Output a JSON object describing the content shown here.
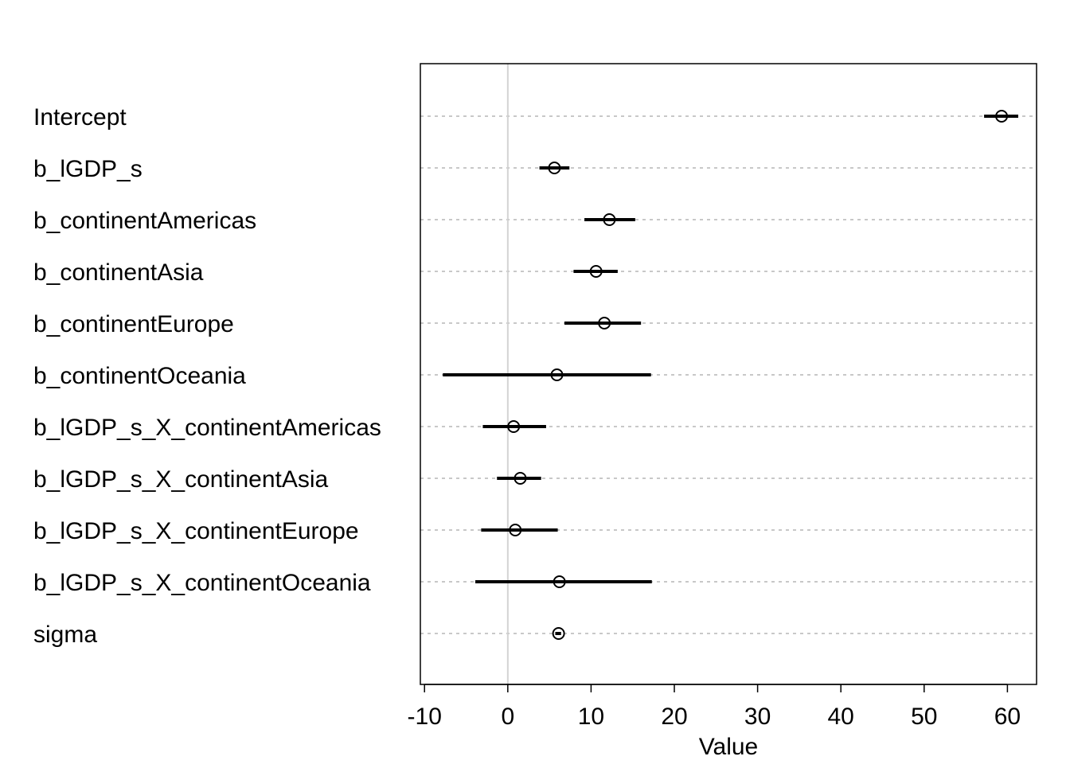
{
  "chart_data": {
    "type": "dotplot",
    "xlabel": "Value",
    "xlim": [
      -10.5,
      63.5
    ],
    "xticks": [
      -10,
      0,
      10,
      20,
      30,
      40,
      50,
      60
    ],
    "reference_line": 0,
    "grid": "horizontal-dashed",
    "rows": [
      {
        "label": "Intercept",
        "estimate": 59.3,
        "lower": 57.2,
        "upper": 61.3
      },
      {
        "label": "b_lGDP_s",
        "estimate": 5.6,
        "lower": 3.8,
        "upper": 7.4
      },
      {
        "label": "b_continentAmericas",
        "estimate": 12.2,
        "lower": 9.2,
        "upper": 15.3
      },
      {
        "label": "b_continentAsia",
        "estimate": 10.6,
        "lower": 7.9,
        "upper": 13.2
      },
      {
        "label": "b_continentEurope",
        "estimate": 11.6,
        "lower": 6.8,
        "upper": 16.0
      },
      {
        "label": "b_continentOceania",
        "estimate": 5.9,
        "lower": -7.8,
        "upper": 17.2
      },
      {
        "label": "b_lGDP_s_X_continentAmericas",
        "estimate": 0.7,
        "lower": -3.0,
        "upper": 4.6
      },
      {
        "label": "b_lGDP_s_X_continentAsia",
        "estimate": 1.5,
        "lower": -1.3,
        "upper": 4.0
      },
      {
        "label": "b_lGDP_s_X_continentEurope",
        "estimate": 0.9,
        "lower": -3.2,
        "upper": 6.0
      },
      {
        "label": "b_lGDP_s_X_continentOceania",
        "estimate": 6.2,
        "lower": -3.9,
        "upper": 17.3
      },
      {
        "label": "sigma",
        "estimate": 6.1,
        "lower": 5.7,
        "upper": 6.4
      }
    ]
  }
}
